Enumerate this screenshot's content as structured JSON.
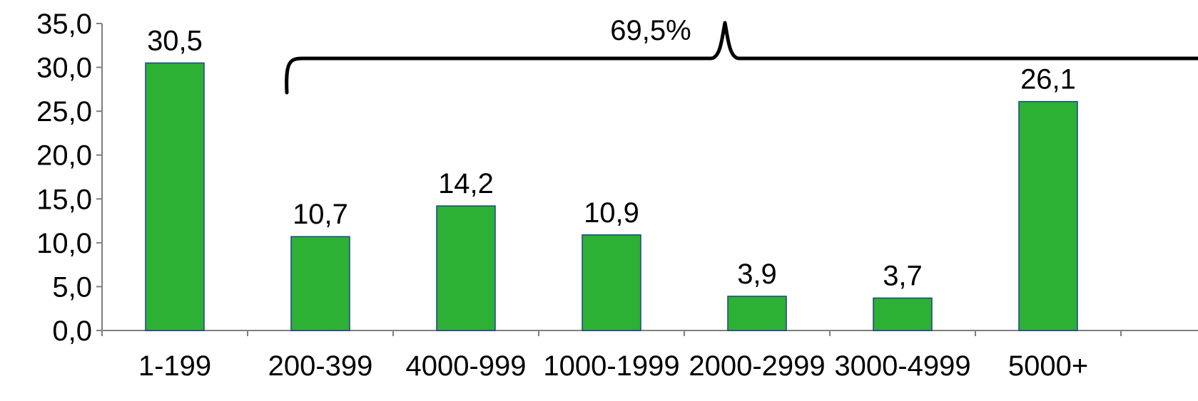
{
  "chart_data": {
    "type": "bar",
    "categories": [
      "1-199",
      "200-399",
      "4000-999",
      "1000-1999",
      "2000-2999",
      "3000-4999",
      "5000+"
    ],
    "values": [
      30.5,
      10.7,
      14.2,
      10.9,
      3.9,
      3.7,
      26.1
    ],
    "value_labels": [
      "30,5",
      "10,7",
      "14,2",
      "10,9",
      "3,9",
      "3,7",
      "26,1"
    ],
    "y_ticks": [
      "0,0",
      "5,0",
      "10,0",
      "15,0",
      "20,0",
      "25,0",
      "30,0",
      "35,0"
    ],
    "ylim": [
      0,
      35
    ],
    "grid": false,
    "legend": "none",
    "bar_color": "#2db135",
    "bar_edge_color": "#1f3f8a",
    "annotation": {
      "text": "69,5%",
      "spans_categories": [
        "200-399",
        "5000+"
      ]
    }
  }
}
